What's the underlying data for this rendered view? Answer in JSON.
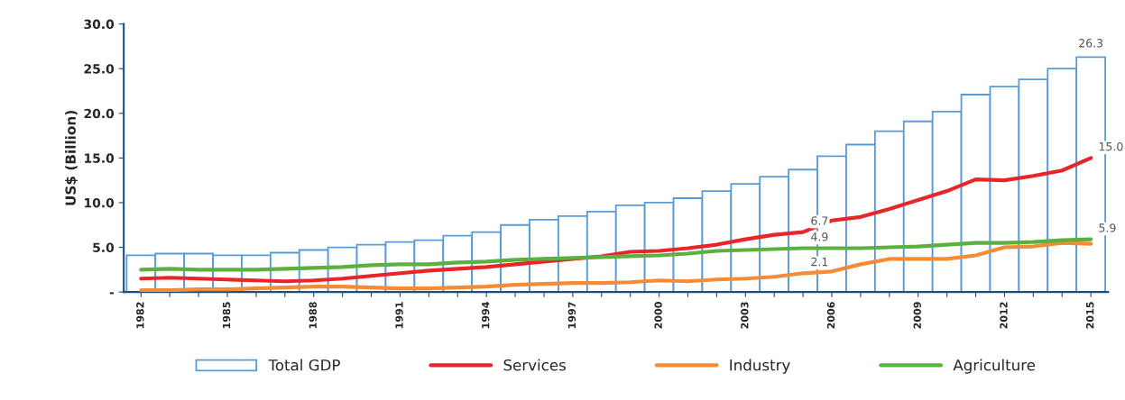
{
  "chart_data": {
    "type": "bar",
    "ylabel": "US$ (Billion)",
    "categories": [
      "1982",
      null,
      null,
      "1985",
      null,
      null,
      "1988",
      null,
      null,
      "1991",
      null,
      null,
      "1994",
      null,
      null,
      "1997",
      null,
      null,
      "2000",
      null,
      null,
      "2003",
      null,
      null,
      "2006",
      null,
      null,
      "2009",
      null,
      null,
      "2012",
      null,
      null,
      "2015"
    ],
    "series": [
      {
        "name": "Total GDP",
        "color": "#5b9bd5",
        "values": [
          4.1,
          4.3,
          4.3,
          4.1,
          4.1,
          4.4,
          4.7,
          5.0,
          5.3,
          5.6,
          5.8,
          6.3,
          6.7,
          7.5,
          8.1,
          8.5,
          9.0,
          9.7,
          10.0,
          10.5,
          11.3,
          12.1,
          12.9,
          13.7,
          15.2,
          16.5,
          18.0,
          19.1,
          20.2,
          22.1,
          23.0,
          23.8,
          25.0,
          26.3
        ],
        "value_labels": [
          null,
          null,
          null,
          null,
          null,
          null,
          null,
          null,
          null,
          null,
          null,
          null,
          null,
          null,
          null,
          null,
          null,
          null,
          null,
          null,
          null,
          null,
          null,
          null,
          null,
          null,
          null,
          null,
          null,
          null,
          null,
          null,
          null,
          "26.3"
        ]
      },
      {
        "name": "Services",
        "type": "line",
        "color": "#e8262a",
        "values": [
          1.5,
          1.6,
          1.5,
          1.4,
          1.3,
          1.2,
          1.3,
          1.5,
          1.8,
          2.1,
          2.4,
          2.6,
          2.8,
          3.1,
          3.4,
          3.7,
          4.0,
          4.5,
          4.6,
          4.9,
          5.3,
          5.9,
          6.4,
          6.7,
          8.0,
          8.4,
          9.3,
          10.3,
          11.3,
          12.6,
          12.5,
          13.0,
          13.6,
          15.0
        ],
        "value_labels": [
          null,
          null,
          null,
          null,
          null,
          null,
          null,
          null,
          null,
          null,
          null,
          null,
          null,
          null,
          null,
          null,
          null,
          null,
          null,
          null,
          null,
          null,
          null,
          "6.7",
          null,
          null,
          null,
          null,
          null,
          null,
          null,
          null,
          null,
          "15.0"
        ]
      },
      {
        "name": "Industry",
        "type": "line",
        "color": "#f28c38",
        "values": [
          0.2,
          0.2,
          0.3,
          0.3,
          0.4,
          0.5,
          0.6,
          0.6,
          0.5,
          0.4,
          0.4,
          0.5,
          0.6,
          0.8,
          0.9,
          1.0,
          1.0,
          1.1,
          1.3,
          1.2,
          1.4,
          1.5,
          1.7,
          2.1,
          2.3,
          3.1,
          3.7,
          3.7,
          3.7,
          4.1,
          5.0,
          5.1,
          5.5,
          5.4
        ],
        "value_labels": [
          null,
          null,
          null,
          null,
          null,
          null,
          null,
          null,
          null,
          null,
          null,
          null,
          null,
          null,
          null,
          null,
          null,
          null,
          null,
          null,
          null,
          null,
          null,
          "2.1",
          null,
          null,
          null,
          null,
          null,
          null,
          null,
          null,
          null,
          null
        ]
      },
      {
        "name": "Agriculture",
        "type": "line",
        "color": "#5cb040",
        "values": [
          2.5,
          2.6,
          2.5,
          2.5,
          2.5,
          2.6,
          2.7,
          2.8,
          3.0,
          3.1,
          3.1,
          3.3,
          3.4,
          3.6,
          3.7,
          3.8,
          3.9,
          4.0,
          4.1,
          4.3,
          4.6,
          4.7,
          4.8,
          4.9,
          4.9,
          4.9,
          5.0,
          5.1,
          5.3,
          5.5,
          5.5,
          5.6,
          5.8,
          5.9
        ],
        "value_labels": [
          null,
          null,
          null,
          null,
          null,
          null,
          null,
          null,
          null,
          null,
          null,
          null,
          null,
          null,
          null,
          null,
          null,
          null,
          null,
          null,
          null,
          null,
          null,
          "4.9",
          null,
          null,
          null,
          null,
          null,
          null,
          null,
          null,
          null,
          "5.9"
        ]
      }
    ],
    "ylim": [
      0,
      30
    ],
    "yticks": [
      {
        "value": 0,
        "label": "-"
      },
      {
        "value": 5,
        "label": "5.0"
      },
      {
        "value": 10,
        "label": "10.0"
      },
      {
        "value": 15,
        "label": "15.0"
      },
      {
        "value": 20,
        "label": "20.0"
      },
      {
        "value": 25,
        "label": "25.0"
      },
      {
        "value": 30,
        "label": "30.0"
      }
    ],
    "legend": "bottom",
    "line_style": "solid",
    "marker": "none"
  }
}
